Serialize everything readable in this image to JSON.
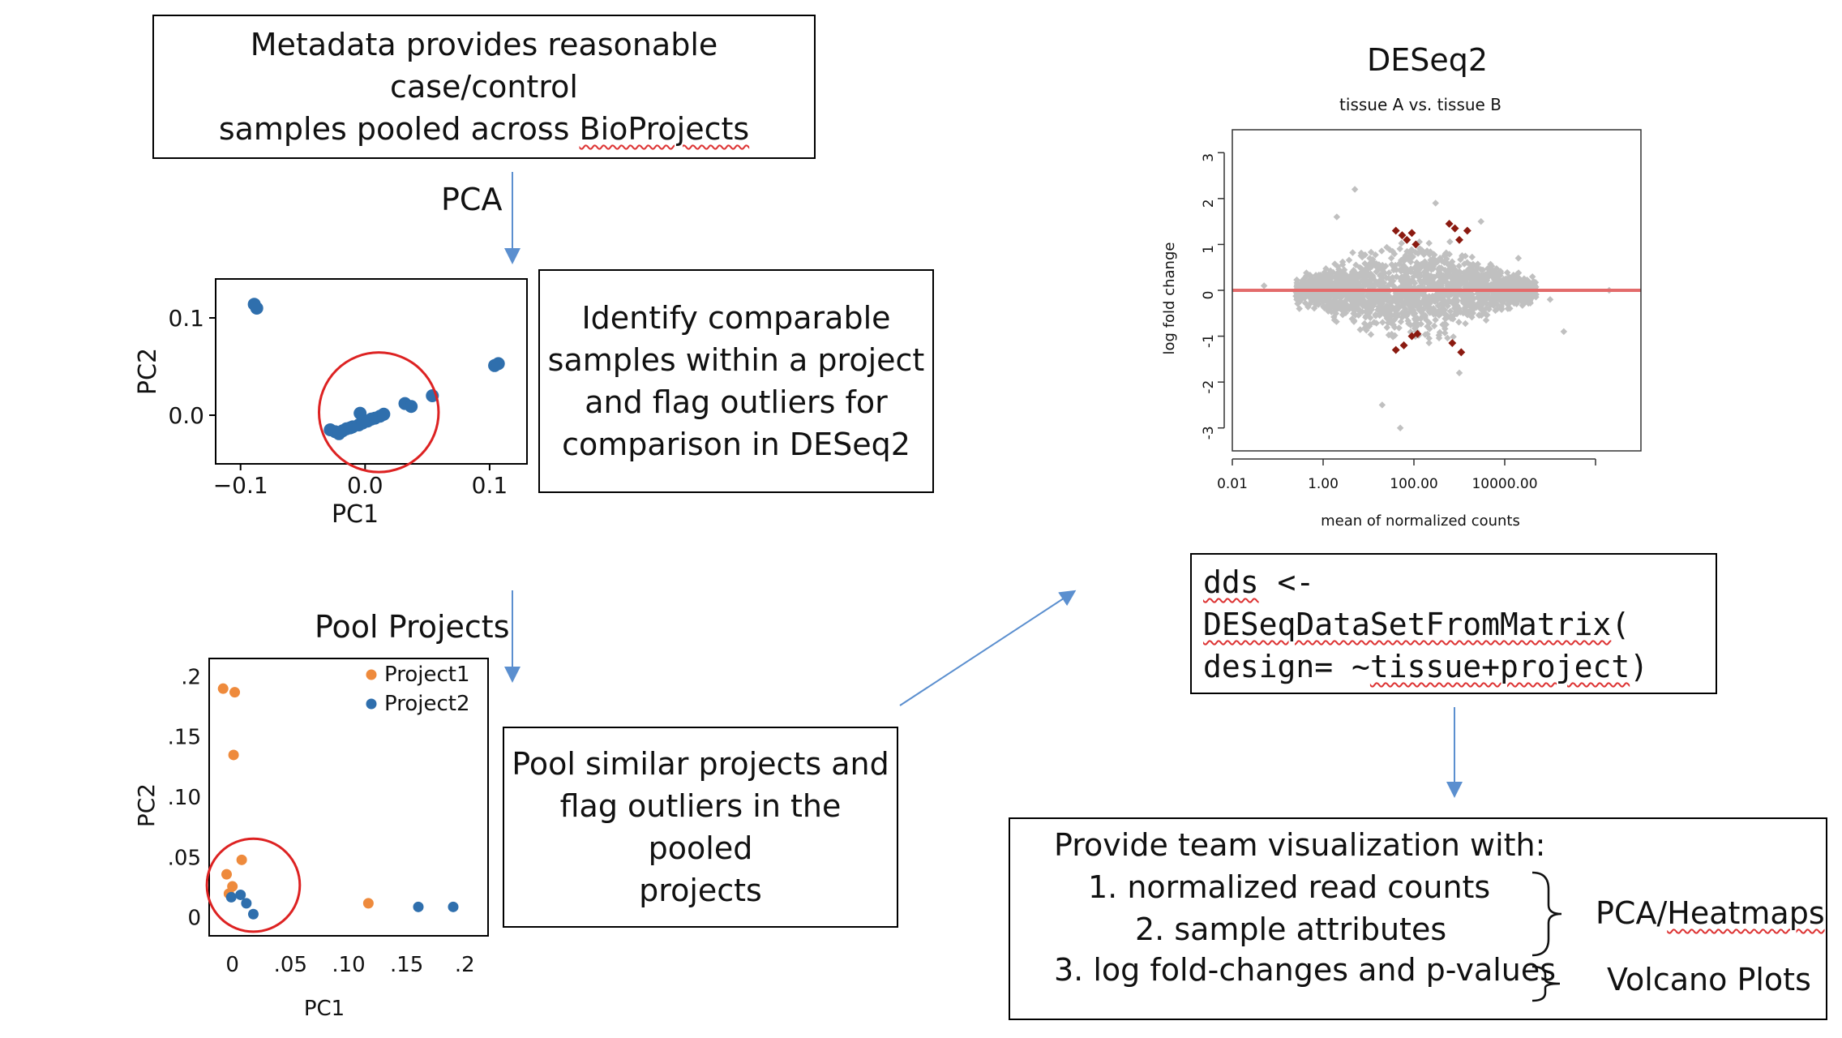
{
  "metadata_box": {
    "line1": "Metadata provides reasonable case/control",
    "line2_a": "samples pooled across ",
    "line2_b": "BioProjects"
  },
  "pca_step": {
    "label": "PCA"
  },
  "pool_step": {
    "label": "Pool Projects"
  },
  "identify_box": {
    "lines": [
      "Identify comparable",
      "samples within a project",
      "and flag outliers for",
      "comparison in DESeq2"
    ]
  },
  "pool_box": {
    "lines": [
      "Pool similar projects and",
      "flag outliers in the pooled",
      "projects"
    ]
  },
  "deseq": {
    "title": "DESeq2"
  },
  "code": {
    "line1_a": "dds",
    "line1_b": " <-",
    "line2_a": "DESeqDataSetFromMatrix",
    "line2_b": "(",
    "line3_a": "design= ~",
    "line3_b": "tissue+project",
    "line3_c": ")"
  },
  "viz_box": {
    "heading": "Provide team visualization with:",
    "item1": "1.   normalized read counts",
    "item2": "2. sample attributes",
    "item3": "3. log fold-changes and p-values",
    "group1_a": "PCA/",
    "group1_b": "Heatmaps",
    "group2": "Volcano Plots"
  },
  "chart_data": [
    {
      "type": "scatter",
      "title": "",
      "xlabel": "PC1",
      "ylabel": "PC2",
      "xlim": [
        -0.12,
        0.13
      ],
      "ylim": [
        -0.05,
        0.14
      ],
      "xticks": [
        -0.1,
        0.0,
        0.1
      ],
      "xtick_labels": [
        "−0.1",
        "0.0",
        "0.1"
      ],
      "yticks": [
        0.0,
        0.1
      ],
      "ytick_labels": [
        "0.0",
        "0.1"
      ],
      "grid": false,
      "color": "#2f6fad",
      "highlight_circle": {
        "cx": 0.011,
        "cy": 0.003,
        "r": 0.048,
        "color": "#dd2222"
      },
      "series": [
        {
          "x": [
            -0.089,
            -0.087,
            -0.028,
            -0.024,
            -0.021,
            -0.018,
            -0.015,
            -0.012,
            -0.01,
            -0.005,
            -0.002,
            0.002,
            0.005,
            0.008,
            0.012,
            0.015,
            -0.004,
            0.032,
            0.037,
            0.054,
            0.104,
            0.107
          ],
          "y": [
            0.114,
            0.11,
            -0.015,
            -0.017,
            -0.019,
            -0.016,
            -0.014,
            -0.013,
            -0.012,
            -0.01,
            -0.008,
            -0.006,
            -0.004,
            -0.003,
            -0.001,
            0.001,
            0.002,
            0.012,
            0.009,
            0.02,
            0.051,
            0.053
          ]
        }
      ]
    },
    {
      "type": "scatter",
      "title": "",
      "xlabel": "PC1",
      "ylabel": "PC2",
      "xlim": [
        -0.02,
        0.22
      ],
      "ylim": [
        -0.015,
        0.215
      ],
      "xticks": [
        0,
        0.05,
        0.1,
        0.15,
        0.2
      ],
      "xtick_labels": [
        "0",
        ".05",
        ".10",
        ".15",
        ".2"
      ],
      "yticks": [
        0,
        0.05,
        0.1,
        0.15,
        0.2
      ],
      "ytick_labels": [
        "0",
        ".05",
        ".10",
        ".15",
        ".2"
      ],
      "grid": false,
      "legend": "top-right",
      "highlight_circle": {
        "cx": 0.018,
        "cy": 0.027,
        "r": 0.04,
        "color": "#dd2222"
      },
      "series": [
        {
          "name": "Project1",
          "color": "#ee8a3c",
          "x": [
            -0.008,
            0.002,
            0.001,
            0.008,
            -0.005,
            0.0,
            -0.003,
            0.117
          ],
          "y": [
            0.19,
            0.187,
            0.135,
            0.048,
            0.036,
            0.026,
            0.02,
            0.012
          ]
        },
        {
          "name": "Project2",
          "color": "#2f6fad",
          "x": [
            -0.001,
            0.007,
            0.012,
            0.018,
            0.16,
            0.19
          ],
          "y": [
            0.017,
            0.019,
            0.012,
            0.003,
            0.009,
            0.009
          ]
        }
      ]
    },
    {
      "type": "scatter",
      "title": "tissue A vs. tissue B",
      "xlabel": "mean of normalized counts",
      "ylabel": "log fold change",
      "x_scale": "log10",
      "xlim": [
        0.01,
        10000000
      ],
      "ylim": [
        -3.5,
        3.5
      ],
      "xticks": [
        0.01,
        1,
        100,
        10000
      ],
      "xtick_labels": [
        "0.01",
        "1.00",
        "100.00",
        "10000.00"
      ],
      "yticks": [
        -3,
        -2,
        -1,
        0,
        1,
        2,
        3
      ],
      "ytick_labels": [
        "-3",
        "-2",
        "-1",
        "0",
        "1",
        "2",
        "3"
      ],
      "grid": false,
      "reference_line": {
        "y": 0,
        "color": "#e36b6b"
      },
      "series": [
        {
          "color": "#c0c0c0",
          "point_cloud": "dense band of genes centred on log fold change 0, widest between ~1 and ~10000 mean counts",
          "x": [
            0.05,
            0.3,
            2,
            5,
            20,
            50,
            300,
            1000,
            3000,
            20000,
            50000,
            100000,
            200000,
            2000000
          ],
          "y": [
            0.1,
            -0.4,
            1.6,
            2.2,
            -2.5,
            -3.0,
            1.9,
            -1.8,
            1.5,
            0.7,
            0.0,
            -0.2,
            -0.9,
            0.0
          ]
        },
        {
          "color": "#8b1a10",
          "x": [
            40,
            55,
            70,
            90,
            110,
            600,
            800,
            1000,
            1500,
            40,
            60,
            90,
            120,
            700,
            1100
          ],
          "y": [
            1.3,
            1.2,
            1.1,
            1.25,
            1.0,
            1.45,
            1.35,
            1.1,
            1.3,
            -1.3,
            -1.2,
            -1.0,
            -0.95,
            -1.15,
            -1.35
          ]
        }
      ]
    }
  ]
}
